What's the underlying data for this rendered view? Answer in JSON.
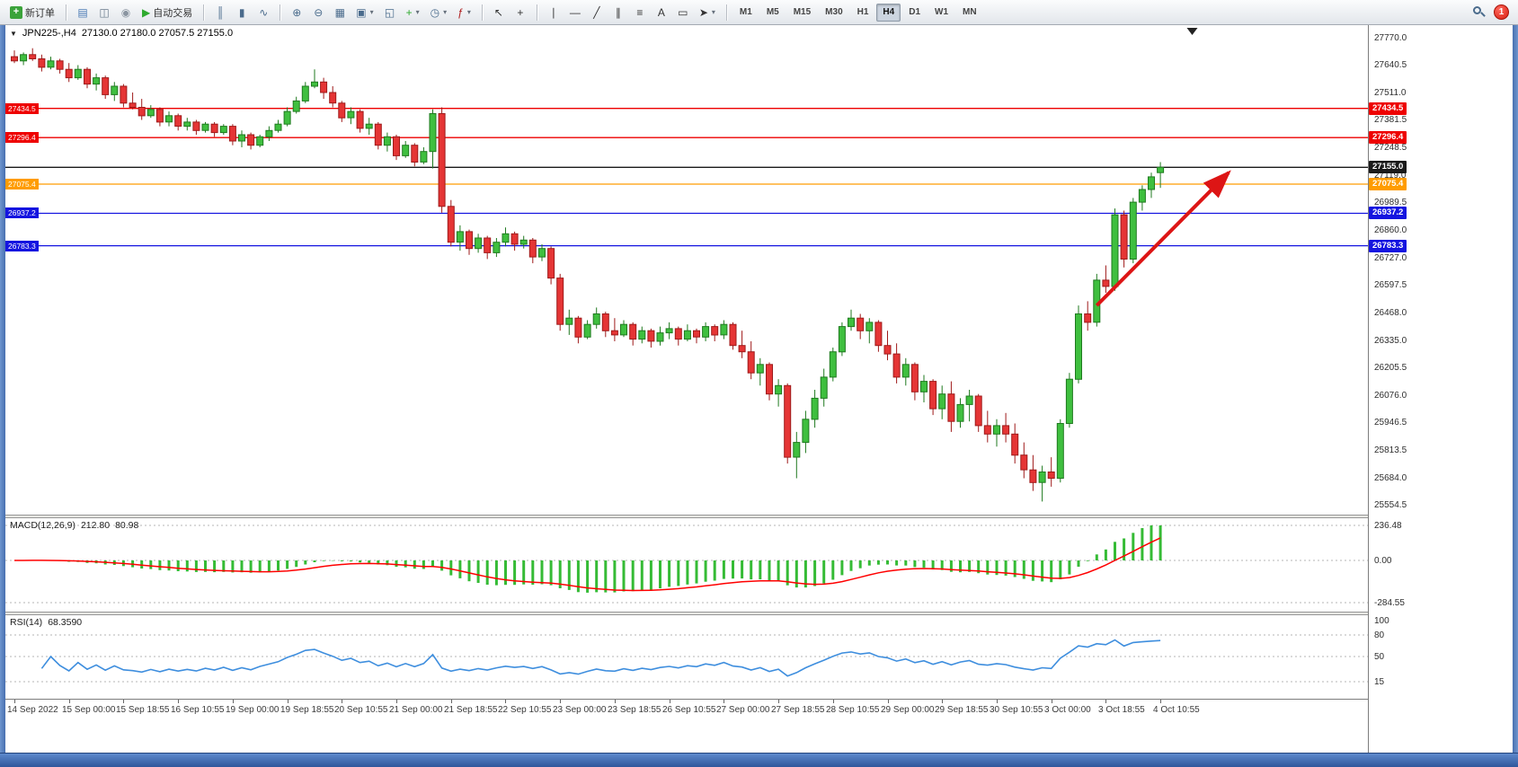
{
  "colors": {
    "bull": "#3fbf3f",
    "bull_stroke": "#1f7a1f",
    "bear": "#e53535",
    "bear_stroke": "#9e1a1a",
    "macd_hist": "#35bb35",
    "macd_signal": "#ff0000",
    "rsi_line": "#3e8ede",
    "arrow": "#dd1515",
    "grid_dash": "#b5b5b5"
  },
  "toolbar": {
    "badge": "1",
    "groups": [
      [
        {
          "name": "new-order-button",
          "chip": "#3ba33b",
          "glyph": "+",
          "label": "新订单"
        }
      ],
      [
        {
          "name": "chart-window-icon",
          "glyph": "▤",
          "color": "#4a7ab5"
        },
        {
          "name": "profile-icon",
          "glyph": "◫",
          "color": "#6b7b8c"
        },
        {
          "name": "metaquotes-icon",
          "glyph": "◉",
          "color": "#8a94a0"
        },
        {
          "name": "autotrading-button",
          "glyph": "▶",
          "color": "#2eaa2e",
          "label": "自动交易"
        }
      ],
      [
        {
          "name": "bar-chart-type-button",
          "glyph": "║",
          "color": "#4a6b8c"
        },
        {
          "name": "candlestick-type-button",
          "glyph": "▮",
          "color": "#4a6b8c"
        },
        {
          "name": "line-chart-type-button",
          "glyph": "∿",
          "color": "#4a6b8c"
        }
      ],
      [
        {
          "name": "zoom-in-button",
          "glyph": "⊕",
          "color": "#4a6b8c"
        },
        {
          "name": "zoom-out-button",
          "glyph": "⊖",
          "color": "#4a6b8c"
        },
        {
          "name": "tile-windows-button",
          "glyph": "▦",
          "color": "#4a6b8c"
        },
        {
          "name": "auto-arrange-button",
          "glyph": "▣",
          "color": "#4a6b8c",
          "dropdown": true
        },
        {
          "name": "cascade-windows-button",
          "glyph": "◱",
          "color": "#4a6b8c"
        },
        {
          "name": "new-chart-button",
          "glyph": "+",
          "color": "#2eaa2e",
          "dropdown": true
        },
        {
          "name": "period-clock-button",
          "glyph": "◷",
          "color": "#4a6b8c",
          "dropdown": true
        },
        {
          "name": "indicators-button",
          "glyph": "ƒ",
          "color": "#b02020",
          "dropdown": true
        }
      ],
      [
        {
          "name": "cursor-button",
          "glyph": "↖",
          "color": "#333333"
        },
        {
          "name": "crosshair-button",
          "glyph": "+",
          "color": "#333333"
        }
      ],
      [
        {
          "name": "vertical-line-button",
          "glyph": "∣",
          "color": "#333333"
        },
        {
          "name": "horizontal-line-button",
          "glyph": "―",
          "color": "#333333"
        },
        {
          "name": "trendline-button",
          "glyph": "╱",
          "color": "#333333"
        },
        {
          "name": "equidistant-channel-button",
          "glyph": "∥",
          "color": "#333333"
        },
        {
          "name": "fibonacci-button",
          "glyph": "≡",
          "color": "#333333"
        },
        {
          "name": "text-button",
          "glyph": "A",
          "color": "#333333"
        },
        {
          "name": "text-label-button",
          "glyph": "▭",
          "color": "#333333"
        },
        {
          "name": "arrows-button",
          "glyph": "➤",
          "color": "#333333",
          "dropdown": true
        }
      ]
    ],
    "timeframes": [
      {
        "label": "M1"
      },
      {
        "label": "M5"
      },
      {
        "label": "M15"
      },
      {
        "label": "M30"
      },
      {
        "label": "H1"
      },
      {
        "label": "H4",
        "active": true
      },
      {
        "label": "D1"
      },
      {
        "label": "W1"
      },
      {
        "label": "MN"
      }
    ]
  },
  "chart": {
    "symbol": "JPN225-,H4",
    "ohlc_text": "27130.0 27180.0 27057.5 27155.0",
    "collapse_glyph": "▼",
    "scale": {
      "top": 27770.0,
      "bottom": 25554.5
    },
    "price_axis_labels": [
      "27770.0",
      "27640.5",
      "27511.0",
      "27381.5",
      "27248.5",
      "27119.0",
      "26989.5",
      "26860.0",
      "26727.0",
      "26597.5",
      "26468.0",
      "26335.0",
      "26205.5",
      "26076.0",
      "25946.5",
      "25813.5",
      "25684.0",
      "25554.5"
    ],
    "lines": [
      {
        "price": 27434.5,
        "label": "27434.5",
        "color": "#ee0000"
      },
      {
        "price": 27296.4,
        "label": "27296.4",
        "color": "#ee0000"
      },
      {
        "price": 27155.0,
        "label": "27155.0",
        "color": "#1a1a1a",
        "role": "current"
      },
      {
        "price": 27075.4,
        "label": "27075.4",
        "color": "#ff9c00"
      },
      {
        "price": 26937.2,
        "label": "26937.2",
        "color": "#1414e0"
      },
      {
        "price": 26783.3,
        "label": "26783.3",
        "color": "#1414e0"
      }
    ],
    "arrow": {
      "from_bar": 119,
      "from_price": 26500,
      "to_bar": 133.5,
      "to_price": 27130
    },
    "shift_marker_bar": 129.5,
    "dates": [
      "14 Sep 2022",
      "15 Sep 00:00",
      "15 Sep 18:55",
      "16 Sep 10:55",
      "19 Sep 00:00",
      "19 Sep 18:55",
      "20 Sep 10:55",
      "21 Sep 00:00",
      "21 Sep 18:55",
      "22 Sep 10:55",
      "23 Sep 00:00",
      "23 Sep 18:55",
      "26 Sep 10:55",
      "27 Sep 00:00",
      "27 Sep 18:55",
      "28 Sep 10:55",
      "29 Sep 00:00",
      "29 Sep 18:55",
      "30 Sep 10:55",
      "3 Oct 00:00",
      "3 Oct 18:55",
      "4 Oct 10:55"
    ],
    "candles": [
      [
        27680,
        27710,
        27650,
        27660
      ],
      [
        27660,
        27700,
        27640,
        27690
      ],
      [
        27690,
        27720,
        27660,
        27670
      ],
      [
        27670,
        27690,
        27610,
        27630
      ],
      [
        27630,
        27680,
        27620,
        27660
      ],
      [
        27660,
        27670,
        27600,
        27620
      ],
      [
        27620,
        27650,
        27560,
        27580
      ],
      [
        27580,
        27640,
        27570,
        27620
      ],
      [
        27620,
        27630,
        27530,
        27550
      ],
      [
        27550,
        27600,
        27520,
        27580
      ],
      [
        27580,
        27590,
        27480,
        27500
      ],
      [
        27500,
        27560,
        27470,
        27540
      ],
      [
        27540,
        27550,
        27440,
        27460
      ],
      [
        27460,
        27510,
        27430,
        27440
      ],
      [
        27440,
        27480,
        27380,
        27400
      ],
      [
        27400,
        27450,
        27390,
        27430
      ],
      [
        27430,
        27440,
        27350,
        27370
      ],
      [
        27370,
        27420,
        27350,
        27400
      ],
      [
        27400,
        27410,
        27330,
        27350
      ],
      [
        27350,
        27390,
        27330,
        27370
      ],
      [
        27370,
        27380,
        27310,
        27330
      ],
      [
        27330,
        27370,
        27320,
        27360
      ],
      [
        27360,
        27370,
        27300,
        27320
      ],
      [
        27320,
        27360,
        27310,
        27350
      ],
      [
        27350,
        27360,
        27260,
        27280
      ],
      [
        27280,
        27330,
        27250,
        27310
      ],
      [
        27310,
        27320,
        27240,
        27260
      ],
      [
        27260,
        27310,
        27250,
        27300
      ],
      [
        27300,
        27350,
        27280,
        27330
      ],
      [
        27330,
        27380,
        27320,
        27360
      ],
      [
        27360,
        27440,
        27350,
        27420
      ],
      [
        27420,
        27490,
        27410,
        27470
      ],
      [
        27470,
        27560,
        27460,
        27540
      ],
      [
        27540,
        27620,
        27530,
        27560
      ],
      [
        27560,
        27580,
        27480,
        27510
      ],
      [
        27510,
        27540,
        27440,
        27460
      ],
      [
        27460,
        27470,
        27370,
        27390
      ],
      [
        27390,
        27440,
        27360,
        27420
      ],
      [
        27420,
        27430,
        27320,
        27340
      ],
      [
        27340,
        27390,
        27310,
        27360
      ],
      [
        27360,
        27370,
        27240,
        27260
      ],
      [
        27260,
        27320,
        27230,
        27300
      ],
      [
        27300,
        27310,
        27190,
        27210
      ],
      [
        27210,
        27280,
        27200,
        27260
      ],
      [
        27260,
        27270,
        27160,
        27180
      ],
      [
        27180,
        27250,
        27170,
        27230
      ],
      [
        27230,
        27430,
        27150,
        27410
      ],
      [
        27410,
        27440,
        26940,
        26970
      ],
      [
        26970,
        27000,
        26780,
        26800
      ],
      [
        26800,
        26880,
        26760,
        26850
      ],
      [
        26850,
        26860,
        26740,
        26770
      ],
      [
        26770,
        26840,
        26750,
        26820
      ],
      [
        26820,
        26830,
        26720,
        26750
      ],
      [
        26750,
        26820,
        26730,
        26800
      ],
      [
        26800,
        26870,
        26780,
        26840
      ],
      [
        26840,
        26850,
        26760,
        26790
      ],
      [
        26790,
        26830,
        26770,
        26810
      ],
      [
        26810,
        26820,
        26700,
        26730
      ],
      [
        26730,
        26790,
        26710,
        26770
      ],
      [
        26770,
        26780,
        26600,
        26630
      ],
      [
        26630,
        26650,
        26380,
        26410
      ],
      [
        26410,
        26480,
        26360,
        26440
      ],
      [
        26440,
        26450,
        26320,
        26350
      ],
      [
        26350,
        26430,
        26340,
        26410
      ],
      [
        26410,
        26490,
        26390,
        26460
      ],
      [
        26460,
        26470,
        26350,
        26380
      ],
      [
        26380,
        26440,
        26330,
        26360
      ],
      [
        26360,
        26430,
        26350,
        26410
      ],
      [
        26410,
        26420,
        26310,
        26340
      ],
      [
        26340,
        26400,
        26320,
        26380
      ],
      [
        26380,
        26390,
        26300,
        26330
      ],
      [
        26330,
        26400,
        26310,
        26370
      ],
      [
        26370,
        26420,
        26340,
        26390
      ],
      [
        26390,
        26400,
        26310,
        26340
      ],
      [
        26340,
        26410,
        26330,
        26380
      ],
      [
        26380,
        26390,
        26320,
        26350
      ],
      [
        26350,
        26420,
        26330,
        26400
      ],
      [
        26400,
        26410,
        26330,
        26360
      ],
      [
        26360,
        26430,
        26340,
        26410
      ],
      [
        26410,
        26420,
        26290,
        26310
      ],
      [
        26310,
        26380,
        26250,
        26280
      ],
      [
        26280,
        26330,
        26150,
        26180
      ],
      [
        26180,
        26250,
        26120,
        26220
      ],
      [
        26220,
        26230,
        26050,
        26080
      ],
      [
        26080,
        26150,
        26020,
        26120
      ],
      [
        26120,
        26130,
        25750,
        25780
      ],
      [
        25780,
        25900,
        25680,
        25850
      ],
      [
        25850,
        26000,
        25800,
        25960
      ],
      [
        25960,
        26100,
        25920,
        26060
      ],
      [
        26060,
        26200,
        26020,
        26160
      ],
      [
        26160,
        26300,
        26140,
        26280
      ],
      [
        26280,
        26420,
        26260,
        26400
      ],
      [
        26400,
        26480,
        26380,
        26440
      ],
      [
        26440,
        26460,
        26340,
        26380
      ],
      [
        26380,
        26440,
        26320,
        26420
      ],
      [
        26420,
        26430,
        26280,
        26310
      ],
      [
        26310,
        26380,
        26240,
        26270
      ],
      [
        26270,
        26320,
        26130,
        26160
      ],
      [
        26160,
        26250,
        26120,
        26220
      ],
      [
        26220,
        26230,
        26050,
        26090
      ],
      [
        26090,
        26170,
        26040,
        26140
      ],
      [
        26140,
        26150,
        25980,
        26010
      ],
      [
        26010,
        26120,
        25960,
        26080
      ],
      [
        26080,
        26140,
        25900,
        25950
      ],
      [
        25950,
        26060,
        25920,
        26030
      ],
      [
        26030,
        26100,
        25950,
        26070
      ],
      [
        26070,
        26080,
        25900,
        25930
      ],
      [
        25930,
        26000,
        25850,
        25890
      ],
      [
        25890,
        25960,
        25830,
        25930
      ],
      [
        25930,
        25990,
        25850,
        25890
      ],
      [
        25890,
        25940,
        25750,
        25790
      ],
      [
        25790,
        25850,
        25680,
        25720
      ],
      [
        25720,
        25790,
        25620,
        25660
      ],
      [
        25660,
        25740,
        25570,
        25710
      ],
      [
        25710,
        25780,
        25640,
        25680
      ],
      [
        25680,
        25960,
        25660,
        25940
      ],
      [
        25940,
        26180,
        25920,
        26150
      ],
      [
        26150,
        26500,
        26130,
        26460
      ],
      [
        26460,
        26520,
        26380,
        26420
      ],
      [
        26420,
        26650,
        26400,
        26620
      ],
      [
        26620,
        26690,
        26560,
        26590
      ],
      [
        26590,
        26960,
        26570,
        26930
      ],
      [
        26930,
        26950,
        26680,
        26720
      ],
      [
        26720,
        27010,
        26700,
        26990
      ],
      [
        26990,
        27070,
        26950,
        27050
      ],
      [
        27050,
        27130,
        27010,
        27110
      ],
      [
        27130,
        27180,
        27057.5,
        27155
      ]
    ]
  },
  "macd": {
    "label": "MACD(12,26,9)",
    "value_main": "212.80",
    "value_signal": "80.98",
    "params": {
      "fast": 12,
      "slow": 26,
      "signal": 9
    },
    "axis_labels": [
      "236.48",
      "0.00",
      "-284.55"
    ],
    "axis_max": 236.48,
    "axis_min": -284.55
  },
  "rsi": {
    "label": "RSI(14)",
    "value": "68.3590",
    "period": 14,
    "axis_labels": [
      "100",
      "80",
      "50",
      "15"
    ],
    "levels": [
      80,
      50,
      15
    ]
  }
}
